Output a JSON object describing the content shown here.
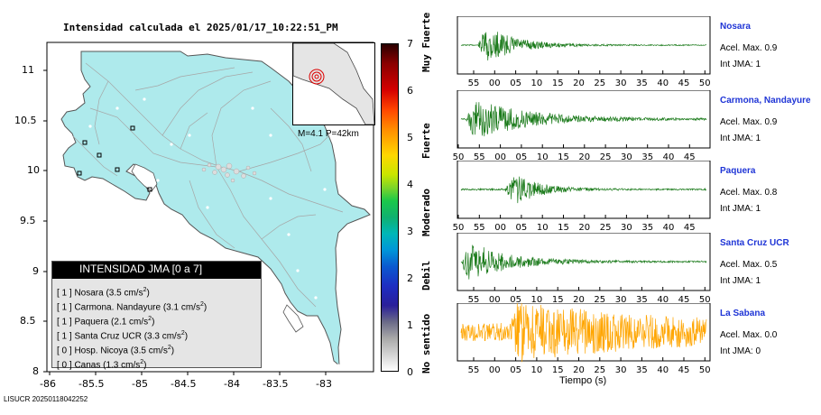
{
  "map": {
    "title": "Intensidad calculada el 2025/01/17_10:22:51_PM",
    "lat_ticks": [
      "11",
      "10.5",
      "10",
      "9.5",
      "9",
      "8.5",
      "8"
    ],
    "lon_ticks": [
      "-86",
      "-85.5",
      "-85",
      "-84.5",
      "-84",
      "-83.5",
      "-83"
    ],
    "inset_label": "M=4.1 P=42km",
    "footer": "LISUCR 20250118042252",
    "colors": {
      "land": "#aeeaec",
      "roads": "#a6a6a6",
      "border": "#555555"
    }
  },
  "colorbar": {
    "ticks": [
      "7",
      "6",
      "5",
      "4",
      "3",
      "2",
      "1",
      "0"
    ],
    "labels": [
      "Muy Fuerte",
      "Fuerte",
      "Moderado",
      "Debil",
      "No sentido"
    ]
  },
  "legend": {
    "title": "INTENSIDAD JMA [0 a 7]",
    "rows": [
      {
        "prefix": "[ 1 ]",
        "name": "Nosara",
        "value": "(3.5 cm/s",
        "sup": "2",
        "close": ")"
      },
      {
        "prefix": "[ 1 ]",
        "name": "Carmona. Nandayure",
        "value": "(3.1 cm/s",
        "sup": "2",
        "close": ")"
      },
      {
        "prefix": "[ 1 ]",
        "name": "Paquera",
        "value": "(2.1 cm/s",
        "sup": "2",
        "close": ")"
      },
      {
        "prefix": "[ 1 ]",
        "name": "Santa Cruz UCR",
        "value": "(3.3 cm/s",
        "sup": "2",
        "close": ")"
      },
      {
        "prefix": "[ 0 ]",
        "name": "Hosp. Nicoya",
        "value": "(3.5 cm/s",
        "sup": "2",
        "close": ")"
      },
      {
        "prefix": "[ 0 ]",
        "name": "Canas",
        "value": "(1.3 cm/s",
        "sup": "2",
        "close": ")"
      }
    ]
  },
  "chart_data": [
    {
      "type": "line",
      "title": "Nosara",
      "accel_label": "Acel. Max. 0.9",
      "int_label": "Int JMA: 1",
      "color": "#1a7a1a",
      "x_ticks": [
        "55",
        "00",
        "05",
        "10",
        "15",
        "20",
        "25",
        "30",
        "35",
        "40",
        "45",
        "50"
      ],
      "signal": {
        "onset": 0.07,
        "peak_width": 0.12,
        "amplitude": 0.95,
        "noise": 0.02,
        "decay": 0.12
      }
    },
    {
      "type": "line",
      "title": "Carmona, Nandayure",
      "accel_label": "Acel. Max. 0.9",
      "int_label": "Int JMA: 1",
      "color": "#1a7a1a",
      "x_ticks": [
        "50",
        "55",
        "00",
        "05",
        "10",
        "15",
        "20",
        "25",
        "30",
        "35",
        "40",
        "45"
      ],
      "signal": {
        "onset": 0.02,
        "peak_width": 0.12,
        "amplitude": 0.9,
        "noise": 0.03,
        "decay": 0.22
      }
    },
    {
      "type": "line",
      "title": "Paquera",
      "accel_label": "Acel. Max. 0.8",
      "int_label": "Int JMA: 1",
      "color": "#1a7a1a",
      "x_ticks": [
        "50",
        "55",
        "00",
        "05",
        "10",
        "15",
        "20",
        "25",
        "30",
        "35",
        "40",
        "45"
      ],
      "signal": {
        "onset": 0.18,
        "peak_width": 0.14,
        "amplitude": 0.9,
        "noise": 0.03,
        "decay": 0.1
      }
    },
    {
      "type": "line",
      "title": "Santa Cruz UCR",
      "accel_label": "Acel. Max. 0.5",
      "int_label": "Int JMA: 1",
      "color": "#1a7a1a",
      "x_ticks": [
        "55",
        "00",
        "05",
        "10",
        "15",
        "20",
        "25",
        "30",
        "35",
        "40",
        "45",
        "50"
      ],
      "signal": {
        "onset": 0.0,
        "peak_width": 0.12,
        "amplitude": 0.95,
        "noise": 0.03,
        "decay": 0.16
      }
    },
    {
      "type": "line",
      "title": "La Sabana",
      "accel_label": "Acel. Max. 0.0",
      "int_label": "Int JMA: 0",
      "color": "#ffa500",
      "x_ticks": [
        "55",
        "00",
        "05",
        "10",
        "15",
        "20",
        "25",
        "30",
        "35",
        "40",
        "45",
        "50"
      ],
      "signal": {
        "onset": 0.2,
        "peak_width": 0.1,
        "amplitude": 0.95,
        "noise": 0.35,
        "decay": 0.5
      }
    }
  ],
  "xlabel": "Tiempo (s)"
}
